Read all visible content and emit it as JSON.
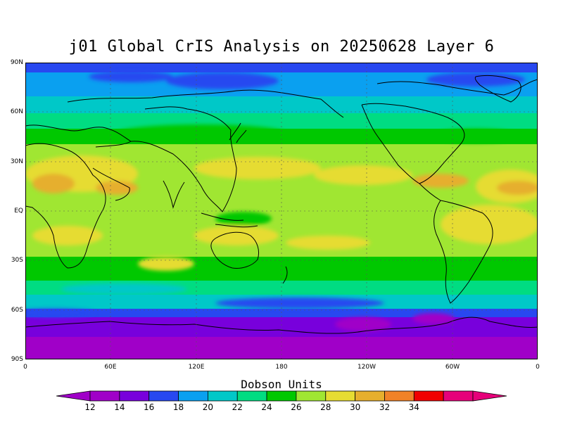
{
  "title": "j01 Global CrIS Analysis on 20250628 Layer 6",
  "map": {
    "lat_ticks": [
      "90N",
      "60N",
      "30N",
      "EQ",
      "30S",
      "60S",
      "90S"
    ],
    "lon_ticks": [
      "0",
      "60E",
      "120E",
      "180",
      "120W",
      "60W",
      "0"
    ],
    "ocean_background": "#a6e03c"
  },
  "colorbar": {
    "title": "Dobson Units",
    "labels": [
      "12",
      "14",
      "16",
      "18",
      "20",
      "22",
      "24",
      "26",
      "28",
      "30",
      "32",
      "34"
    ],
    "colors": [
      "#a000c8",
      "#7800dc",
      "#2848f0",
      "#0aa0f0",
      "#00c8c8",
      "#00dc82",
      "#00c800",
      "#a0e632",
      "#e6dc32",
      "#e6af2d",
      "#f08228",
      "#f00000",
      "#e6007a"
    ],
    "min_color": "#a000c8",
    "max_color": "#e6007a"
  }
}
